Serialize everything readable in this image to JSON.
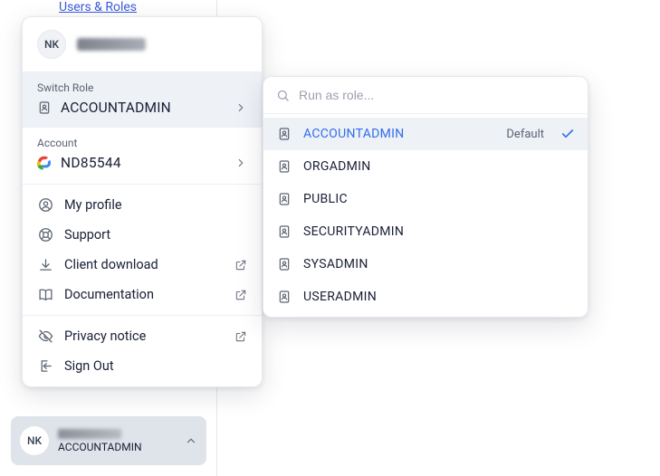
{
  "colors": {
    "accent": "#2f6fed",
    "link": "#3b5bdb",
    "text": "#1a1f36",
    "muted": "#5b6472",
    "border": "#e5e8ee",
    "hover_bg": "#eef1f6",
    "sidebar_card_bg": "#dfe3ea"
  },
  "topNav": {
    "link": "Users & Roles"
  },
  "user": {
    "initials": "NK",
    "name_obscured": true
  },
  "popover": {
    "switchRole": {
      "label": "Switch Role",
      "value": "ACCOUNTADMIN"
    },
    "account": {
      "label": "Account",
      "value": "ND85544",
      "provider": "google-cloud"
    },
    "items": [
      {
        "id": "profile",
        "label": "My profile",
        "icon": "user-circle",
        "external": false
      },
      {
        "id": "support",
        "label": "Support",
        "icon": "lifebuoy",
        "external": false
      },
      {
        "id": "client",
        "label": "Client download",
        "icon": "download",
        "external": true
      },
      {
        "id": "docs",
        "label": "Documentation",
        "icon": "book",
        "external": true
      }
    ],
    "footerItems": [
      {
        "id": "privacy",
        "label": "Privacy notice",
        "icon": "eye-off",
        "external": true
      },
      {
        "id": "signout",
        "label": "Sign Out",
        "icon": "logout",
        "external": false
      }
    ]
  },
  "roleMenu": {
    "placeholder": "Run as role...",
    "defaultBadge": "Default",
    "roles": [
      {
        "name": "ACCOUNTADMIN",
        "selected": true,
        "default": true
      },
      {
        "name": "ORGADMIN",
        "selected": false,
        "default": false
      },
      {
        "name": "PUBLIC",
        "selected": false,
        "default": false
      },
      {
        "name": "SECURITYADMIN",
        "selected": false,
        "default": false
      },
      {
        "name": "SYSADMIN",
        "selected": false,
        "default": false
      },
      {
        "name": "USERADMIN",
        "selected": false,
        "default": false
      }
    ]
  },
  "sidebarFooter": {
    "initials": "NK",
    "role": "ACCOUNTADMIN"
  }
}
